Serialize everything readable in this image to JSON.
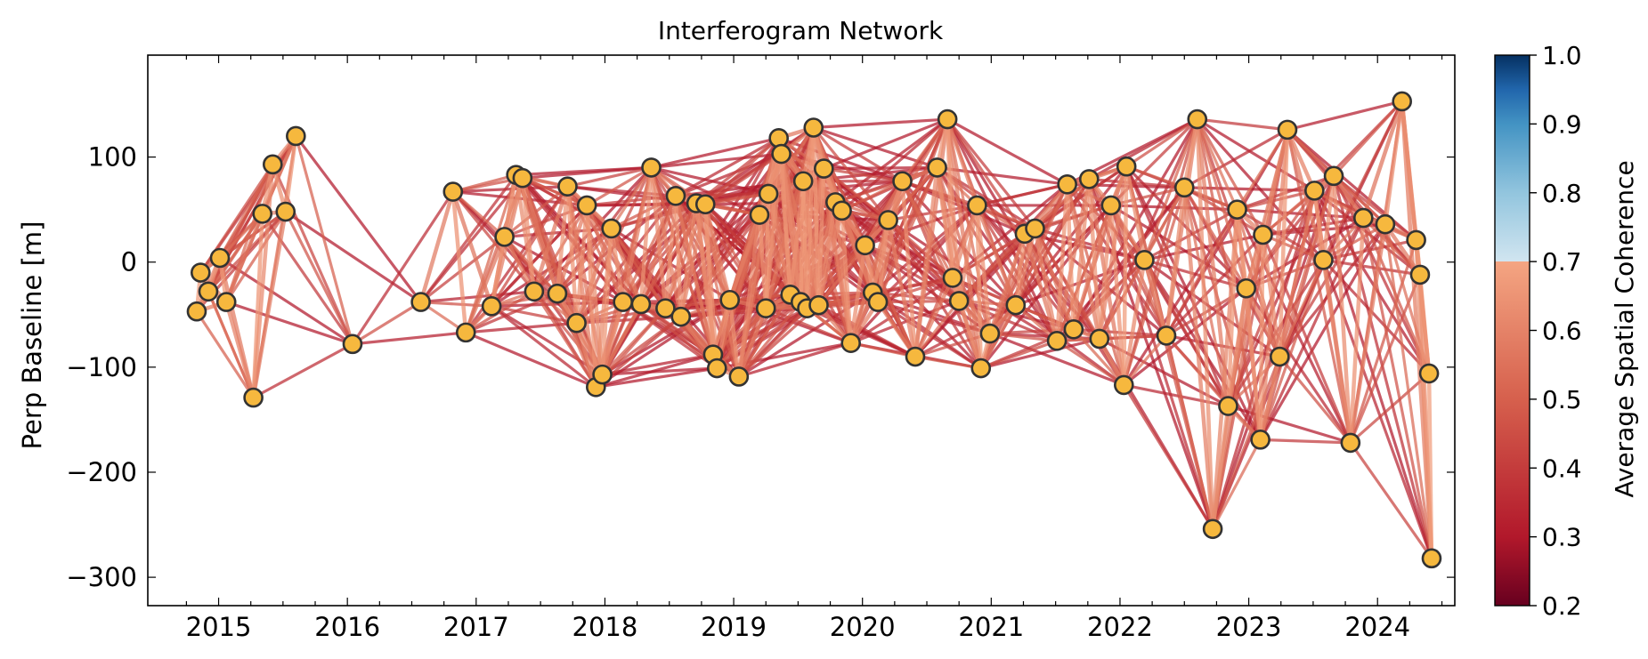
{
  "chart_data": {
    "type": "scatter",
    "title": "Interferogram Network",
    "xlabel": "",
    "ylabel": "Perp Baseline [m]",
    "xlim": [
      2014.45,
      2024.6
    ],
    "ylim": [
      -327,
      197
    ],
    "x_ticks": [
      "2015",
      "2016",
      "2017",
      "2018",
      "2019",
      "2020",
      "2021",
      "2022",
      "2023",
      "2024"
    ],
    "y_ticks": [
      100,
      0,
      -100,
      -200,
      -300
    ],
    "y_tick_labels": [
      "100",
      "0",
      "−100",
      "−200",
      "−300"
    ],
    "grid": false,
    "colorbar": {
      "label": "Average Spatial Coherence",
      "range": [
        0.2,
        1.0
      ],
      "ticks": [
        "0.2",
        "0.3",
        "0.4",
        "0.5",
        "0.6",
        "0.7",
        "0.8",
        "0.9",
        "1.0"
      ],
      "colors": {
        "low": "#67001f",
        "red": "#b2182b",
        "mid_red": "#d6604d",
        "salmon": "#f4a582",
        "light": "#d1e5f0",
        "light_blue": "#92c5de",
        "blue": "#4393c3",
        "dark_blue": "#2166ac",
        "navy": "#053061"
      },
      "shown_max": 0.7
    },
    "node_style": {
      "fill": "#f6b83e",
      "edge": "#333333"
    },
    "acquisitions": [
      {
        "date": 2014.83,
        "bperp": -47
      },
      {
        "date": 2014.86,
        "bperp": -10
      },
      {
        "date": 2014.92,
        "bperp": -28
      },
      {
        "date": 2015.01,
        "bperp": 4
      },
      {
        "date": 2015.06,
        "bperp": -38
      },
      {
        "date": 2015.27,
        "bperp": -129
      },
      {
        "date": 2015.34,
        "bperp": 46
      },
      {
        "date": 2015.42,
        "bperp": 93
      },
      {
        "date": 2015.52,
        "bperp": 48
      },
      {
        "date": 2015.6,
        "bperp": 120
      },
      {
        "date": 2016.04,
        "bperp": -78
      },
      {
        "date": 2016.57,
        "bperp": -38
      },
      {
        "date": 2016.82,
        "bperp": 67
      },
      {
        "date": 2016.92,
        "bperp": -67
      },
      {
        "date": 2017.12,
        "bperp": -42
      },
      {
        "date": 2017.22,
        "bperp": 24
      },
      {
        "date": 2017.31,
        "bperp": 83
      },
      {
        "date": 2017.36,
        "bperp": 80
      },
      {
        "date": 2017.45,
        "bperp": -28
      },
      {
        "date": 2017.63,
        "bperp": -30
      },
      {
        "date": 2017.71,
        "bperp": 72
      },
      {
        "date": 2017.78,
        "bperp": -58
      },
      {
        "date": 2017.86,
        "bperp": 54
      },
      {
        "date": 2017.93,
        "bperp": -119
      },
      {
        "date": 2017.98,
        "bperp": -107
      },
      {
        "date": 2018.05,
        "bperp": 32
      },
      {
        "date": 2018.14,
        "bperp": -38
      },
      {
        "date": 2018.28,
        "bperp": -40
      },
      {
        "date": 2018.36,
        "bperp": 90
      },
      {
        "date": 2018.47,
        "bperp": -44
      },
      {
        "date": 2018.55,
        "bperp": 63
      },
      {
        "date": 2018.59,
        "bperp": -52
      },
      {
        "date": 2018.71,
        "bperp": 56
      },
      {
        "date": 2018.78,
        "bperp": 55
      },
      {
        "date": 2018.84,
        "bperp": -88
      },
      {
        "date": 2018.87,
        "bperp": -101
      },
      {
        "date": 2018.97,
        "bperp": -36
      },
      {
        "date": 2019.04,
        "bperp": -109
      },
      {
        "date": 2019.2,
        "bperp": 45
      },
      {
        "date": 2019.25,
        "bperp": -44
      },
      {
        "date": 2019.27,
        "bperp": 65
      },
      {
        "date": 2019.35,
        "bperp": 118
      },
      {
        "date": 2019.37,
        "bperp": 103
      },
      {
        "date": 2019.44,
        "bperp": -31
      },
      {
        "date": 2019.52,
        "bperp": -38
      },
      {
        "date": 2019.57,
        "bperp": -44
      },
      {
        "date": 2019.54,
        "bperp": 77
      },
      {
        "date": 2019.62,
        "bperp": 128
      },
      {
        "date": 2019.66,
        "bperp": -41
      },
      {
        "date": 2019.7,
        "bperp": 89
      },
      {
        "date": 2019.79,
        "bperp": 57
      },
      {
        "date": 2019.84,
        "bperp": 49
      },
      {
        "date": 2019.91,
        "bperp": -77
      },
      {
        "date": 2020.02,
        "bperp": 16
      },
      {
        "date": 2020.08,
        "bperp": -29
      },
      {
        "date": 2020.12,
        "bperp": -38
      },
      {
        "date": 2020.2,
        "bperp": 40
      },
      {
        "date": 2020.31,
        "bperp": 77
      },
      {
        "date": 2020.41,
        "bperp": -90
      },
      {
        "date": 2020.58,
        "bperp": 90
      },
      {
        "date": 2020.66,
        "bperp": 136
      },
      {
        "date": 2020.7,
        "bperp": -15
      },
      {
        "date": 2020.75,
        "bperp": -37
      },
      {
        "date": 2020.89,
        "bperp": 54
      },
      {
        "date": 2020.92,
        "bperp": -101
      },
      {
        "date": 2020.99,
        "bperp": -68
      },
      {
        "date": 2021.19,
        "bperp": -41
      },
      {
        "date": 2021.26,
        "bperp": 27
      },
      {
        "date": 2021.34,
        "bperp": 32
      },
      {
        "date": 2021.51,
        "bperp": -75
      },
      {
        "date": 2021.59,
        "bperp": 74
      },
      {
        "date": 2021.64,
        "bperp": -64
      },
      {
        "date": 2021.76,
        "bperp": 79
      },
      {
        "date": 2021.84,
        "bperp": -73
      },
      {
        "date": 2021.93,
        "bperp": 54
      },
      {
        "date": 2022.03,
        "bperp": -117
      },
      {
        "date": 2022.05,
        "bperp": 91
      },
      {
        "date": 2022.19,
        "bperp": 2
      },
      {
        "date": 2022.36,
        "bperp": -70
      },
      {
        "date": 2022.5,
        "bperp": 71
      },
      {
        "date": 2022.6,
        "bperp": 136
      },
      {
        "date": 2022.72,
        "bperp": -254
      },
      {
        "date": 2022.84,
        "bperp": -137
      },
      {
        "date": 2022.91,
        "bperp": 50
      },
      {
        "date": 2022.98,
        "bperp": -25
      },
      {
        "date": 2023.09,
        "bperp": -169
      },
      {
        "date": 2023.11,
        "bperp": 26
      },
      {
        "date": 2023.24,
        "bperp": -90
      },
      {
        "date": 2023.3,
        "bperp": 126
      },
      {
        "date": 2023.51,
        "bperp": 68
      },
      {
        "date": 2023.58,
        "bperp": 2
      },
      {
        "date": 2023.66,
        "bperp": 82
      },
      {
        "date": 2023.79,
        "bperp": -172
      },
      {
        "date": 2023.89,
        "bperp": 42
      },
      {
        "date": 2024.06,
        "bperp": 36
      },
      {
        "date": 2024.19,
        "bperp": 153
      },
      {
        "date": 2024.3,
        "bperp": 21
      },
      {
        "date": 2024.33,
        "bperp": -12
      },
      {
        "date": 2024.4,
        "bperp": -106
      },
      {
        "date": 2024.42,
        "bperp": -282
      }
    ]
  }
}
